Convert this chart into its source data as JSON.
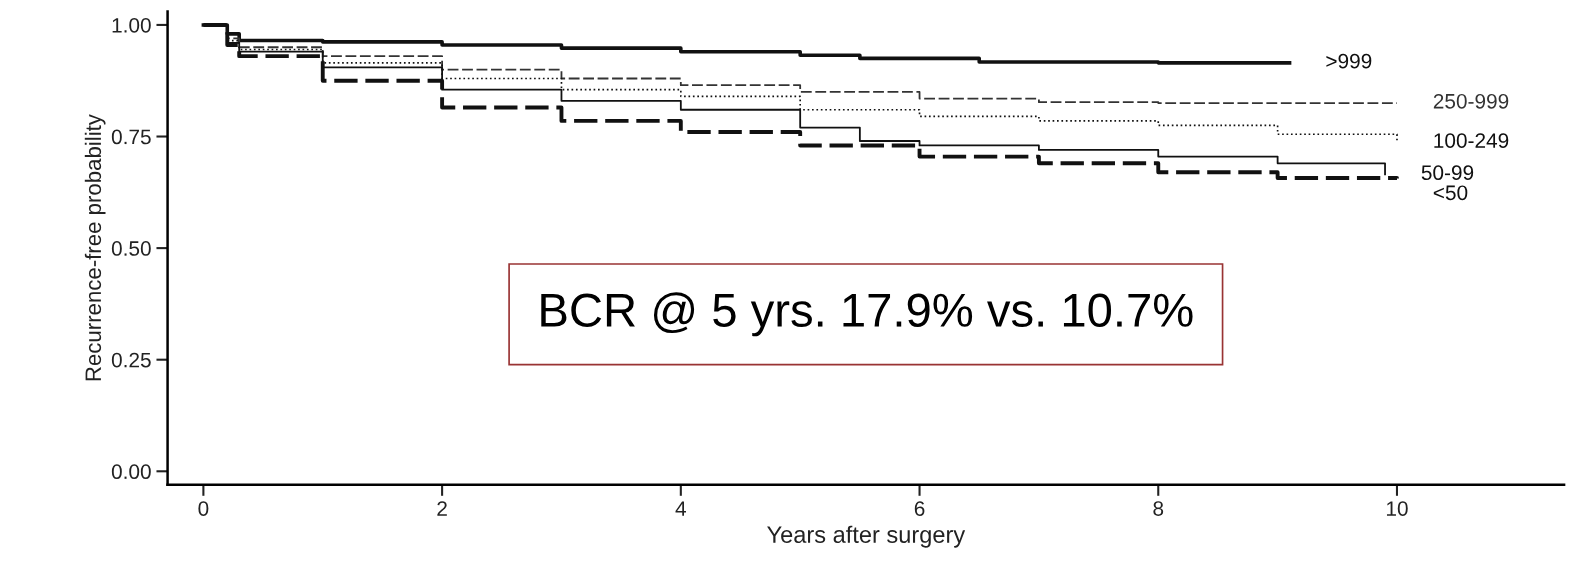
{
  "chart_data": {
    "type": "step",
    "xlabel": "Years after surgery",
    "ylabel": "Recurrence-free probability",
    "xlim": [
      -0.3,
      11.4
    ],
    "ylim": [
      -0.03,
      1.03
    ],
    "xticks": [
      0,
      2,
      4,
      6,
      8,
      10
    ],
    "yticks": [
      {
        "value": 0,
        "label": "0.00"
      },
      {
        "value": 0.25,
        "label": "0.25"
      },
      {
        "value": 0.5,
        "label": "0.50"
      },
      {
        "value": 0.75,
        "label": "0.75"
      },
      {
        "value": 1,
        "label": "1.00"
      }
    ],
    "grid": false,
    "annotations": [
      "BCR @ 5 yrs. 17.9% vs. 10.7%"
    ],
    "series": [
      {
        "name": ">999",
        "color": "#111111",
        "line_style": "solid",
        "x": [
          0,
          0.1,
          0.2,
          0.3,
          1,
          2,
          3,
          4,
          5,
          5.5,
          6.5,
          8,
          9.1
        ],
        "values": [
          1,
          1,
          0.98,
          0.965,
          0.962,
          0.955,
          0.948,
          0.94,
          0.932,
          0.925,
          0.917,
          0.915,
          0.915
        ]
      },
      {
        "name": "250-999",
        "color": "#333333",
        "line_style": "dashed",
        "x": [
          0,
          0.1,
          0.2,
          0.3,
          1,
          2,
          3,
          4,
          5,
          6,
          7,
          8,
          10
        ],
        "values": [
          1,
          1,
          0.97,
          0.95,
          0.93,
          0.9,
          0.88,
          0.865,
          0.85,
          0.835,
          0.827,
          0.825,
          0.825
        ]
      },
      {
        "name": "100-249",
        "color": "#111111",
        "line_style": "dotted",
        "x": [
          0,
          0.1,
          0.2,
          0.3,
          1,
          2,
          3,
          4,
          5,
          6,
          7,
          8,
          9,
          10
        ],
        "values": [
          1,
          1,
          0.965,
          0.945,
          0.915,
          0.88,
          0.855,
          0.84,
          0.81,
          0.795,
          0.785,
          0.775,
          0.755,
          0.737
        ]
      },
      {
        "name": "50-99",
        "color": "#111111",
        "line_style": "solid",
        "x": [
          0,
          0.1,
          0.2,
          0.3,
          1,
          2,
          3,
          4,
          5,
          5.5,
          6,
          7,
          8,
          9,
          9.9
        ],
        "values": [
          1,
          1,
          0.96,
          0.94,
          0.905,
          0.855,
          0.83,
          0.81,
          0.77,
          0.74,
          0.73,
          0.72,
          0.705,
          0.69,
          0.665
        ]
      },
      {
        "name": "<50",
        "color": "#111111",
        "line_style": "dashed",
        "x": [
          0,
          0.1,
          0.2,
          0.3,
          1,
          2,
          3,
          4,
          5,
          6,
          7,
          8,
          9,
          10
        ],
        "values": [
          1,
          1,
          0.955,
          0.93,
          0.875,
          0.815,
          0.785,
          0.76,
          0.73,
          0.705,
          0.69,
          0.67,
          0.657,
          0.656
        ]
      }
    ]
  }
}
